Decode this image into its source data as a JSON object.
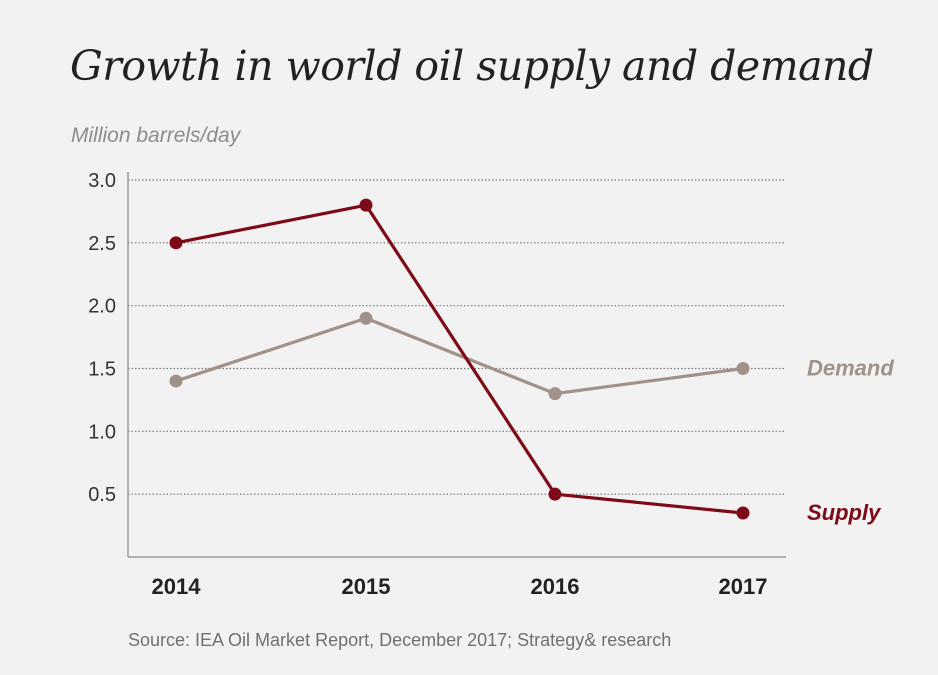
{
  "chart_data": {
    "type": "line",
    "title": "Growth in world oil supply and demand",
    "ylabel": "Million barrels/day",
    "xlabel": "",
    "x": [
      "2014",
      "2015",
      "2016",
      "2017"
    ],
    "yticks": [
      "3.0",
      "2.5",
      "2.0",
      "1.5",
      "1.0",
      "0.5"
    ],
    "ytick_values": [
      3.0,
      2.5,
      2.0,
      1.5,
      1.0,
      0.5
    ],
    "ylim": [
      0,
      3.0
    ],
    "grid": "horizontal dotted",
    "legend": "right (inline labels)",
    "series": [
      {
        "name": "Demand",
        "color": "#a09189",
        "values": [
          1.4,
          1.9,
          1.3,
          1.5
        ]
      },
      {
        "name": "Supply",
        "color": "#7d0a16",
        "values": [
          2.5,
          2.8,
          0.5,
          0.35
        ]
      }
    ],
    "source": "Source: IEA Oil Market Report, December 2017; Strategy& research"
  }
}
